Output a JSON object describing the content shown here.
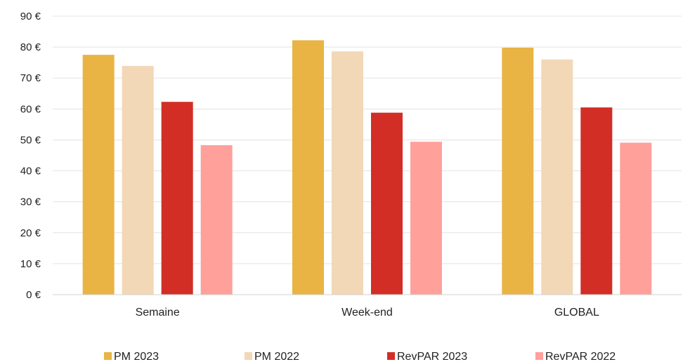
{
  "chart_data": {
    "type": "bar",
    "title": "",
    "xlabel": "",
    "ylabel": "",
    "ylim": [
      0,
      90
    ],
    "yticks": [
      0,
      10,
      20,
      30,
      40,
      50,
      60,
      70,
      80,
      90
    ],
    "ytick_labels": [
      "0 €",
      "10 €",
      "20 €",
      "30 €",
      "40 €",
      "50 €",
      "60 €",
      "70 €",
      "80 €",
      "90 €"
    ],
    "grid": true,
    "legend_position": "bottom",
    "categories": [
      "Semaine",
      "Week-end",
      "GLOBAL"
    ],
    "series": [
      {
        "name": "PM 2023",
        "color": "#E9B444",
        "values": [
          77.5,
          82.2,
          79.8
        ]
      },
      {
        "name": "PM 2022",
        "color": "#F2D8B6",
        "values": [
          73.9,
          78.6,
          76.0
        ]
      },
      {
        "name": "RevPAR 2023",
        "color": "#D22E26",
        "values": [
          62.3,
          58.8,
          60.5
        ]
      },
      {
        "name": "RevPAR 2022",
        "color": "#FFA09B",
        "values": [
          48.3,
          49.4,
          49.1
        ]
      }
    ]
  }
}
